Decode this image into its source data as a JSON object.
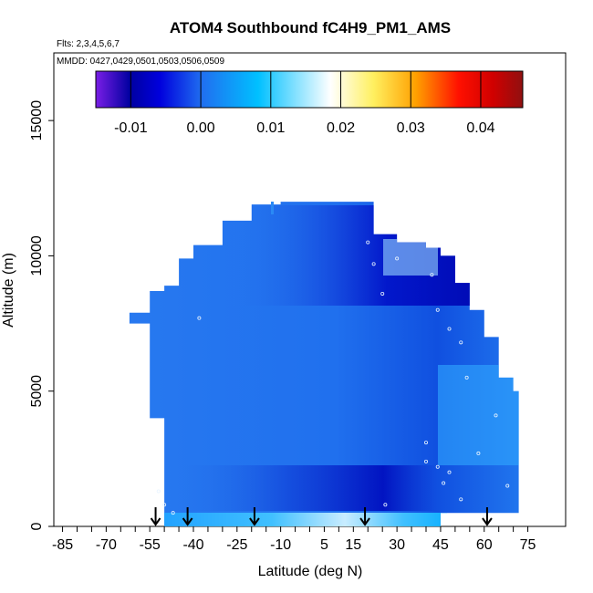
{
  "chart_data": {
    "type": "heatmap",
    "title": "ATOM4 Southbound fC4H9_PM1_AMS",
    "flights_note": "Flts: 2,3,4,5,6,7",
    "dates_note": "MMDD: 0427,0429,0501,0503,0506,0509",
    "xlabel": "Latitude (deg N)",
    "ylabel": "Altitude (m)",
    "xlim": [
      -88,
      88
    ],
    "ylim": [
      0,
      17500
    ],
    "x_ticks": [
      -85,
      -70,
      -55,
      -40,
      -25,
      -10,
      5,
      15,
      30,
      45,
      60,
      75
    ],
    "x_tick_labels": [
      "-85",
      "-70",
      "-55",
      "-40",
      "-25",
      "-10",
      "5",
      "15",
      "30",
      "45",
      "60",
      "75"
    ],
    "y_ticks": [
      0,
      5000,
      10000,
      15000
    ],
    "y_tick_labels": [
      "0",
      "5000",
      "10000",
      "15000"
    ],
    "colorbar": {
      "range": [
        -0.015,
        0.046
      ],
      "ticks": [
        -0.01,
        0.0,
        0.01,
        0.02,
        0.03,
        0.04
      ],
      "tick_labels": [
        "-0.01",
        "0.00",
        "0.01",
        "0.02",
        "0.03",
        "0.04"
      ],
      "colors": [
        "#7a1ee6",
        "#0000a0",
        "#0000dd",
        "#2070f0",
        "#00c0ff",
        "#ffffff",
        "#fff060",
        "#ffa000",
        "#ff1000",
        "#d00000",
        "#901010"
      ]
    },
    "coverage_envelope": {
      "description": "altitude extent [bottom, top] in m by latitude",
      "latitude": [
        -62,
        -55,
        -50,
        -45,
        -40,
        -30,
        -20,
        -10,
        0,
        10,
        18,
        22,
        30,
        40,
        45,
        50,
        55,
        60,
        65,
        70
      ],
      "bottom_alt": [
        7500,
        4000,
        0,
        0,
        0,
        0,
        0,
        0,
        0,
        0,
        0,
        0,
        0,
        0,
        500,
        500,
        500,
        500,
        500,
        500
      ],
      "top_alt": [
        7900,
        8700,
        8900,
        9900,
        10400,
        11300,
        11900,
        12000,
        12000,
        12000,
        12000,
        10800,
        10500,
        10300,
        10000,
        9000,
        8000,
        7000,
        5500,
        5000
      ]
    },
    "profile_locations_lat": [
      -53,
      -42,
      -19,
      19,
      61
    ]
  }
}
